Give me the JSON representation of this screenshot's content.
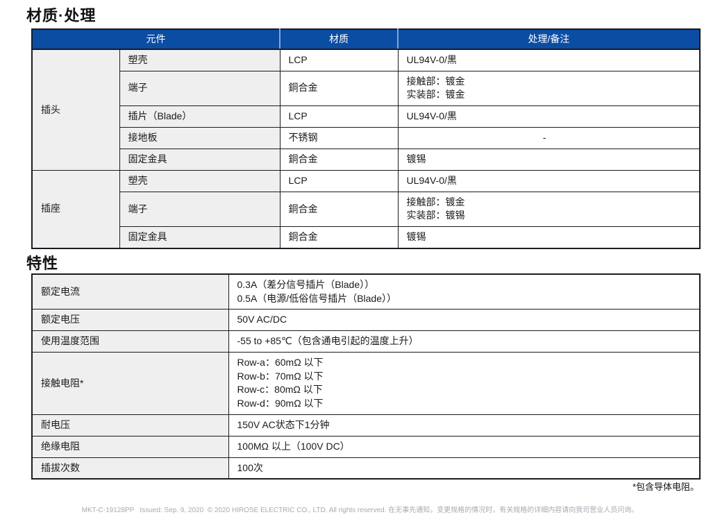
{
  "page": {
    "section1_title": "材质·处理",
    "section2_title": "特性",
    "footnote": "*包含导体电阻。",
    "footer": "MKT-C-19128PP   Issued: Sep. 9, 2020  © 2020 HIROSE ELECTRIC CO., LTD. All rights reserved. 在无事先通知，变更规格的情况时，有关规格的详细内容请向我司营业人员问询。"
  },
  "materials_table": {
    "headers": [
      "元件",
      "材质",
      "处理/备注"
    ],
    "groups": [
      {
        "name": "插头",
        "rows": [
          {
            "component": "塑壳",
            "material": "LCP",
            "treatment": "UL94V-0/黒"
          },
          {
            "component": "端子",
            "material": "銅合金",
            "treatment": "接触部：镀金\n实装部：镀金"
          },
          {
            "component": "插片（Blade）",
            "material": "LCP",
            "treatment": "UL94V-0/黒"
          },
          {
            "component": "接地板",
            "material": "不锈钢",
            "treatment": "-"
          },
          {
            "component": "固定金具",
            "material": "銅合金",
            "treatment": "镀锡"
          }
        ]
      },
      {
        "name": "插座",
        "rows": [
          {
            "component": "塑壳",
            "material": "LCP",
            "treatment": "UL94V-0/黒"
          },
          {
            "component": "端子",
            "material": "銅合金",
            "treatment": "接触部：镀金\n实装部：镀锡"
          },
          {
            "component": "固定金具",
            "material": "銅合金",
            "treatment": "镀锡"
          }
        ]
      }
    ]
  },
  "spec_table": {
    "rows": [
      {
        "label": "额定电流",
        "value": "0.3A（差分信号插片（Blade））\n0.5A（电源/低俗信号插片（Blade））"
      },
      {
        "label": "额定电压",
        "value": "50V AC/DC"
      },
      {
        "label": "使用温度范围",
        "value": "-55 to +85℃（包含通电引起的温度上升）"
      },
      {
        "label": "接触电阻*",
        "value": "Row-a：60mΩ 以下\nRow-b：70mΩ 以下\nRow-c：80mΩ 以下\nRow-d：90mΩ 以下"
      },
      {
        "label": "耐电压",
        "value": "150V AC状态下1分钟"
      },
      {
        "label": "绝缘电阻",
        "value": "100MΩ 以上（100V DC）"
      },
      {
        "label": "插拔次数",
        "value": "100次"
      }
    ]
  },
  "colors": {
    "header_bg": "#0c4da4",
    "header_text": "#ffffff",
    "header_separator": "#7fa8d9",
    "cell_gray": "#efefef",
    "border_dark": "#1a1a22"
  }
}
